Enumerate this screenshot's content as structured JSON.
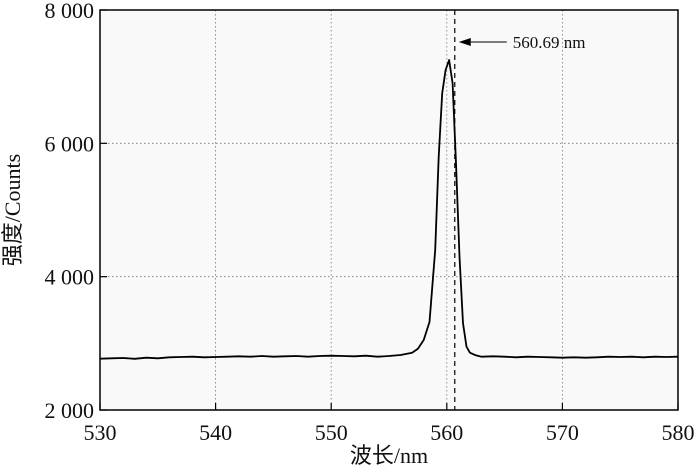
{
  "chart_data": {
    "type": "line",
    "title": "",
    "xlabel": "波长/nm",
    "ylabel": "强度/Counts",
    "xlim": [
      530,
      580
    ],
    "ylim": [
      2000,
      8000
    ],
    "x_ticks": [
      530,
      540,
      550,
      560,
      570,
      580
    ],
    "y_ticks": [
      2000,
      4000,
      6000,
      8000
    ],
    "x_tick_labels": [
      "530",
      "540",
      "550",
      "560",
      "570",
      "580"
    ],
    "y_tick_labels": [
      "2 000",
      "4 000",
      "6 000",
      "8 000"
    ],
    "grid": true,
    "series": [
      {
        "x": [
          530,
          531,
          532,
          533,
          534,
          535,
          536,
          537,
          538,
          539,
          540,
          541,
          542,
          543,
          544,
          545,
          546,
          547,
          548,
          549,
          550,
          551,
          552,
          553,
          554,
          555,
          556,
          557,
          557.5,
          558,
          558.5,
          559,
          559.3,
          559.6,
          559.9,
          560.2,
          560.5,
          560.8,
          561.1,
          561.4,
          561.7,
          562,
          562.5,
          563,
          564,
          565,
          566,
          567,
          568,
          569,
          570,
          571,
          572,
          573,
          574,
          575,
          576,
          577,
          578,
          579,
          580
        ],
        "y": [
          2770,
          2775,
          2780,
          2768,
          2785,
          2775,
          2790,
          2795,
          2800,
          2790,
          2795,
          2800,
          2805,
          2800,
          2810,
          2800,
          2805,
          2810,
          2800,
          2810,
          2815,
          2810,
          2805,
          2815,
          2800,
          2810,
          2825,
          2860,
          2920,
          3050,
          3320,
          4400,
          5800,
          6750,
          7100,
          7250,
          6900,
          5700,
          4300,
          3300,
          2950,
          2860,
          2820,
          2800,
          2805,
          2800,
          2790,
          2800,
          2795,
          2790,
          2785,
          2790,
          2785,
          2790,
          2800,
          2795,
          2800,
          2790,
          2800,
          2795,
          2800
        ]
      }
    ],
    "annotations": [
      {
        "text": "560.69 nm",
        "x": 560.69
      }
    ]
  }
}
